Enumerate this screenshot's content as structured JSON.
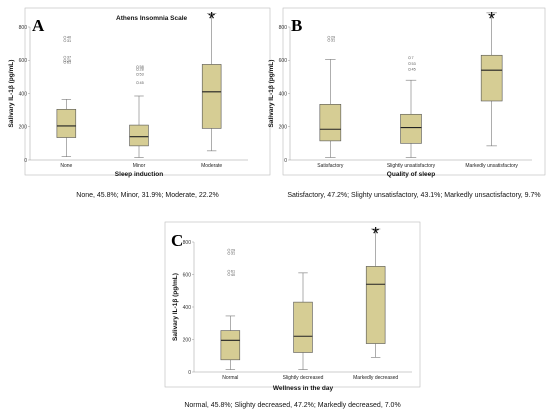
{
  "chart_data": [
    {
      "type": "box",
      "panel": "A",
      "title": "Athens Insomnia Scale",
      "xlabel": "Sleep induction",
      "ylabel": "Salivary IL-1β (pg/mL)",
      "ylim": [
        0,
        800
      ],
      "yticks": [
        0,
        200,
        400,
        600,
        800
      ],
      "caption": "None, 45.8%;  Minor, 31.9%;  Moderate,  22.2%",
      "significance": [
        "",
        "",
        "*"
      ],
      "boxes": [
        {
          "category": "None",
          "min": 20,
          "q1": 135,
          "median": 205,
          "q3": 305,
          "max": 365,
          "outliers": [
            {
              "y": 738,
              "label": "40"
            },
            {
              "y": 718,
              "label": "31"
            },
            {
              "y": 618,
              "label": "37"
            },
            {
              "y": 598,
              "label": "29"
            },
            {
              "y": 588,
              "label": "61"
            }
          ]
        },
        {
          "category": "Minor",
          "min": 15,
          "q1": 85,
          "median": 140,
          "q3": 210,
          "max": 385,
          "outliers": [
            {
              "y": 560,
              "label": "58"
            },
            {
              "y": 545,
              "label": "28"
            },
            {
              "y": 515,
              "label": "53"
            },
            {
              "y": 465,
              "label": "45"
            }
          ]
        },
        {
          "category": "Moderate",
          "min": 55,
          "q1": 190,
          "median": 410,
          "q3": 575,
          "max": 880,
          "outliers": []
        }
      ]
    },
    {
      "type": "box",
      "panel": "B",
      "title": "",
      "xlabel": "Quality of sleep",
      "ylabel": "Salivary IL-1β (pg/mL)",
      "ylim": [
        0,
        800
      ],
      "yticks": [
        0,
        200,
        400,
        600,
        800
      ],
      "caption": "Satisfactory, 47.2%;  Slighty unsatisfactory, 43.1%;  Markedly unsactisfactory, 9.7%",
      "significance": [
        "",
        "",
        "*"
      ],
      "boxes": [
        {
          "category": "Satisfactory",
          "min": 15,
          "q1": 115,
          "median": 185,
          "q3": 335,
          "max": 605,
          "outliers": [
            {
              "y": 738,
              "label": "29"
            },
            {
              "y": 720,
              "label": "31"
            }
          ]
        },
        {
          "category": "Slightly unsatisfactory",
          "min": 15,
          "q1": 100,
          "median": 195,
          "q3": 275,
          "max": 480,
          "outliers": [
            {
              "y": 615,
              "label": "7"
            },
            {
              "y": 580,
              "label": "53"
            },
            {
              "y": 545,
              "label": "45"
            }
          ]
        },
        {
          "category": "Markedly unsatisfactory",
          "min": 85,
          "q1": 355,
          "median": 540,
          "q3": 630,
          "max": 885,
          "outliers": []
        }
      ]
    },
    {
      "type": "box",
      "panel": "C",
      "title": "",
      "xlabel": "Wellness in the day",
      "ylabel": "Salivary IL-1β (pg/mL)",
      "ylim": [
        0,
        800
      ],
      "yticks": [
        0,
        200,
        400,
        600,
        800
      ],
      "caption": "Normal, 45.8%;  Slighty decreased, 47.2%; Markedly decreased, 7.0%",
      "significance": [
        "",
        "",
        "*"
      ],
      "boxes": [
        {
          "category": "Normal",
          "min": 15,
          "q1": 75,
          "median": 195,
          "q3": 255,
          "max": 345,
          "outliers": [
            {
              "y": 750,
              "label": "29"
            },
            {
              "y": 730,
              "label": "31"
            },
            {
              "y": 620,
              "label": "61"
            },
            {
              "y": 600,
              "label": "40"
            }
          ]
        },
        {
          "category": "Slightly decreased",
          "min": 15,
          "q1": 120,
          "median": 220,
          "q3": 430,
          "max": 610,
          "outliers": []
        },
        {
          "category": "Markedly decreased",
          "min": 90,
          "q1": 175,
          "median": 540,
          "q3": 650,
          "max": 880,
          "outliers": []
        }
      ]
    }
  ],
  "colors": {
    "box_fill": "#d6cd94",
    "box_stroke": "#555555",
    "whisker": "#777777",
    "frame": "#bbbbbb"
  }
}
